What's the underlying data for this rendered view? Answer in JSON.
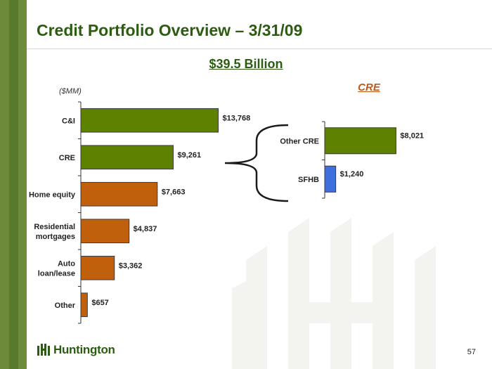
{
  "slide": {
    "title": "Credit Portfolio Overview – 3/31/09",
    "total": "$39.5 Billion",
    "unit_label": "($MM)",
    "cre_heading": "CRE",
    "page_number": "57",
    "logo_text": "Huntington"
  },
  "colors": {
    "title": "#2c5c12",
    "green_bar": "#5f8100",
    "orange_bar": "#c0600c",
    "blue_bar": "#3f6fdc",
    "accent_orange": "#c0581a",
    "side_stripe": "#6d8a3a"
  },
  "chart_data": [
    {
      "type": "bar",
      "orientation": "horizontal",
      "categories": [
        "C&I",
        "CRE",
        "Home equity",
        "Residential mortgages",
        "Auto loan/lease",
        "Other"
      ],
      "values": [
        13768,
        9261,
        7663,
        4837,
        3362,
        657
      ],
      "data_labels": [
        "$13,768",
        "$9,261",
        "$7,663",
        "$4,837",
        "$3,362",
        "$657"
      ],
      "bar_colors": [
        "#5f8100",
        "#5f8100",
        "#c0600c",
        "#c0600c",
        "#c0600c",
        "#c0600c"
      ],
      "ylabel": "($MM)",
      "xlim": [
        0,
        15000
      ],
      "grid": false,
      "legend": "none"
    },
    {
      "type": "bar",
      "orientation": "horizontal",
      "title": "CRE",
      "categories": [
        "Other CRE",
        "SFHB"
      ],
      "values": [
        8021,
        1240
      ],
      "data_labels": [
        "$8,021",
        "$1,240"
      ],
      "bar_colors": [
        "#5f8100",
        "#3f6fdc"
      ],
      "xlim": [
        0,
        8700
      ],
      "grid": false,
      "legend": "none"
    }
  ]
}
